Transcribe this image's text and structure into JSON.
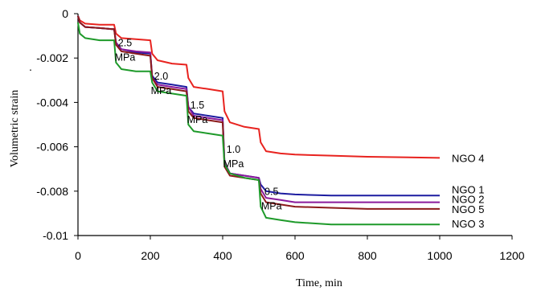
{
  "chart_data": {
    "type": "line",
    "xlabel": "Time, min",
    "ylabel": "Volumetric strain",
    "ylabel_suffix": ".",
    "xlim": [
      0,
      1200
    ],
    "ylim": [
      -0.01,
      0
    ],
    "x_ticks": [
      "0",
      "200",
      "400",
      "600",
      "800",
      "1000",
      "1200"
    ],
    "y_ticks": [
      "0",
      "-0.002",
      "-0.004",
      "-0.006",
      "-0.008",
      "-0.01"
    ],
    "grid": false,
    "series": [
      {
        "name": "NGO 4",
        "color": "#e8231f",
        "x": [
          0,
          5,
          20,
          60,
          95,
          100,
          105,
          120,
          160,
          200,
          205,
          220,
          260,
          300,
          305,
          320,
          360,
          400,
          405,
          420,
          460,
          500,
          505,
          520,
          560,
          600,
          700,
          800,
          1000
        ],
        "y": [
          -0.0001,
          -0.0003,
          -0.00045,
          -0.0005,
          -0.0005,
          -0.0005,
          -0.0009,
          -0.0011,
          -0.00115,
          -0.0012,
          -0.0018,
          -0.0021,
          -0.00225,
          -0.0023,
          -0.0029,
          -0.0033,
          -0.0034,
          -0.0035,
          -0.0044,
          -0.0049,
          -0.0051,
          -0.0052,
          -0.0058,
          -0.0062,
          -0.0063,
          -0.00635,
          -0.0064,
          -0.00645,
          -0.0065
        ]
      },
      {
        "name": "NGO 1",
        "color": "#1c1ca0",
        "x": [
          0,
          5,
          20,
          60,
          95,
          100,
          105,
          120,
          160,
          200,
          205,
          220,
          260,
          300,
          305,
          320,
          360,
          400,
          405,
          420,
          460,
          500,
          505,
          520,
          560,
          600,
          700,
          800,
          1000
        ],
        "y": [
          -0.0001,
          -0.0004,
          -0.0006,
          -0.00065,
          -0.0007,
          -0.0007,
          -0.0013,
          -0.0016,
          -0.00175,
          -0.0018,
          -0.0028,
          -0.0031,
          -0.0032,
          -0.0033,
          -0.0042,
          -0.0045,
          -0.0046,
          -0.0047,
          -0.0067,
          -0.0072,
          -0.0073,
          -0.0074,
          -0.0077,
          -0.008,
          -0.0081,
          -0.00815,
          -0.0082,
          -0.0082,
          -0.0082
        ]
      },
      {
        "name": "NGO 2",
        "color": "#8a1a9c",
        "x": [
          0,
          5,
          20,
          60,
          95,
          100,
          105,
          120,
          160,
          200,
          205,
          220,
          260,
          300,
          305,
          320,
          360,
          400,
          405,
          420,
          460,
          500,
          505,
          520,
          560,
          600,
          700,
          800,
          1000
        ],
        "y": [
          -0.0001,
          -0.0004,
          -0.0006,
          -0.00065,
          -0.0007,
          -0.0007,
          -0.0013,
          -0.0016,
          -0.0017,
          -0.00175,
          -0.0029,
          -0.0032,
          -0.0033,
          -0.0034,
          -0.0042,
          -0.0046,
          -0.0047,
          -0.0048,
          -0.0067,
          -0.0072,
          -0.0073,
          -0.0074,
          -0.0079,
          -0.0083,
          -0.0084,
          -0.0085,
          -0.0085,
          -0.0085,
          -0.0085
        ]
      },
      {
        "name": "NGO 5",
        "color": "#8b1a1a",
        "x": [
          0,
          5,
          20,
          60,
          95,
          100,
          105,
          120,
          160,
          200,
          205,
          220,
          260,
          300,
          305,
          320,
          360,
          400,
          405,
          420,
          460,
          500,
          505,
          520,
          560,
          600,
          700,
          800,
          1000
        ],
        "y": [
          -0.0001,
          -0.0004,
          -0.0006,
          -0.00065,
          -0.0007,
          -0.0007,
          -0.0014,
          -0.0017,
          -0.0018,
          -0.0019,
          -0.0029,
          -0.0033,
          -0.0034,
          -0.0035,
          -0.0044,
          -0.0047,
          -0.0048,
          -0.0049,
          -0.0069,
          -0.0073,
          -0.0074,
          -0.0075,
          -0.0081,
          -0.0085,
          -0.0086,
          -0.0087,
          -0.00875,
          -0.0088,
          -0.0088
        ]
      },
      {
        "name": "NGO 3",
        "color": "#1e9a2a",
        "x": [
          0,
          5,
          20,
          60,
          95,
          100,
          105,
          120,
          160,
          200,
          205,
          220,
          260,
          300,
          305,
          320,
          360,
          400,
          405,
          420,
          460,
          500,
          505,
          520,
          560,
          600,
          700,
          800,
          1000
        ],
        "y": [
          -0.0004,
          -0.0009,
          -0.0011,
          -0.0012,
          -0.0012,
          -0.0012,
          -0.0022,
          -0.0025,
          -0.0026,
          -0.0026,
          -0.0031,
          -0.0035,
          -0.0036,
          -0.0037,
          -0.005,
          -0.0053,
          -0.0054,
          -0.0055,
          -0.0068,
          -0.0072,
          -0.0074,
          -0.0075,
          -0.0087,
          -0.0092,
          -0.0093,
          -0.0094,
          -0.0095,
          -0.0095,
          -0.0095
        ]
      }
    ],
    "annotations": [
      {
        "line1": "2.5",
        "line2": "MPa",
        "x": 130,
        "y": -0.0018
      },
      {
        "line1": "2.0",
        "line2": "MPa",
        "x": 230,
        "y": -0.0033
      },
      {
        "line1": "1.5",
        "line2": "MPa",
        "x": 330,
        "y": -0.0046
      },
      {
        "line1": "1.0",
        "line2": "MPa",
        "x": 430,
        "y": -0.0066
      },
      {
        "line1": "0.5",
        "line2": "MPa",
        "x": 535,
        "y": -0.0085
      }
    ],
    "legend_placement": "right, beside line ends"
  }
}
